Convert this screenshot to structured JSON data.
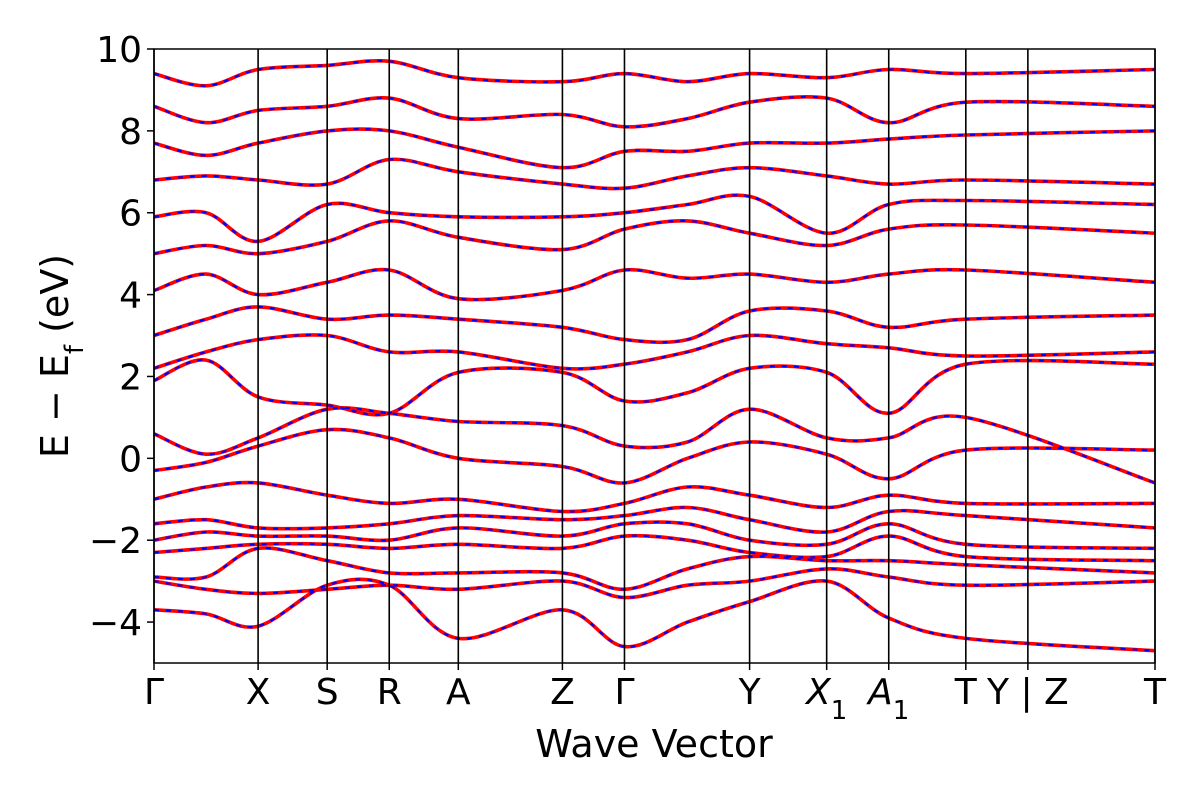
{
  "chart_data": {
    "type": "line",
    "title": "",
    "xlabel": "Wave Vector",
    "ylabel": "E − E",
    "ylabel_sub": "f",
    "ylabel_unit": " (eV)",
    "ylim": [
      -5,
      10
    ],
    "yticks": [
      {
        "value": 10,
        "label": "10"
      },
      {
        "value": 8,
        "label": "8"
      },
      {
        "value": 6,
        "label": "6"
      },
      {
        "value": 4,
        "label": "4"
      },
      {
        "value": 2,
        "label": "2"
      },
      {
        "value": 0,
        "label": "0"
      },
      {
        "value": -2,
        "label": "−2"
      },
      {
        "value": -4,
        "label": "−4"
      }
    ],
    "xlim": [
      0,
      1
    ],
    "kpoints": [
      {
        "pos": 0.0,
        "label": "Γ"
      },
      {
        "pos": 0.104,
        "label": "X"
      },
      {
        "pos": 0.173,
        "label": "S"
      },
      {
        "pos": 0.235,
        "label": "R"
      },
      {
        "pos": 0.304,
        "label": "A"
      },
      {
        "pos": 0.408,
        "label": "Z"
      },
      {
        "pos": 0.47,
        "label": "Γ"
      },
      {
        "pos": 0.595,
        "label": "Y"
      },
      {
        "pos": 0.672,
        "label": "X",
        "sub": "1"
      },
      {
        "pos": 0.734,
        "label": "A",
        "sub": "1"
      },
      {
        "pos": 0.811,
        "label": "T"
      },
      {
        "pos": 0.873,
        "label": "Y | Z"
      },
      {
        "pos": 1.0,
        "label": "T"
      }
    ],
    "series": [
      {
        "color": "#0000ff",
        "style": "dashed",
        "values": [
          [
            -3.7,
            -3.8,
            -4.1,
            -3.1,
            -3.1,
            -4.4,
            -3.7,
            -4.6,
            -4.0,
            -3.5,
            -3.0,
            -3.9,
            -4.4,
            -4.7
          ],
          [
            -3.0,
            -3.2,
            -3.3,
            -3.2,
            -3.1,
            -3.2,
            -3.0,
            -3.4,
            -3.1,
            -3.0,
            -2.7,
            -2.9,
            -3.1,
            -3.0
          ],
          [
            -2.9,
            -2.9,
            -2.2,
            -2.5,
            -2.8,
            -2.8,
            -2.8,
            -3.2,
            -2.7,
            -2.4,
            -2.5,
            -2.5,
            -2.6,
            -2.8
          ],
          [
            -2.3,
            -2.2,
            -2.1,
            -2.1,
            -2.2,
            -2.1,
            -2.2,
            -1.9,
            -2.0,
            -2.3,
            -2.4,
            -1.9,
            -2.4,
            -2.5
          ],
          [
            -2.0,
            -1.8,
            -1.9,
            -1.9,
            -2.0,
            -1.7,
            -1.9,
            -1.6,
            -1.6,
            -2.0,
            -2.1,
            -1.6,
            -2.1,
            -2.2
          ],
          [
            -1.6,
            -1.5,
            -1.7,
            -1.7,
            -1.6,
            -1.4,
            -1.5,
            -1.4,
            -1.2,
            -1.5,
            -1.8,
            -1.3,
            -1.4,
            -1.7
          ],
          [
            -1.0,
            -0.7,
            -0.6,
            -0.9,
            -1.1,
            -1.0,
            -1.3,
            -1.1,
            -0.7,
            -0.9,
            -1.2,
            -0.9,
            -1.1,
            -1.1
          ],
          [
            -0.3,
            -0.1,
            0.3,
            0.7,
            0.5,
            0.0,
            -0.2,
            -0.6,
            0.0,
            0.4,
            0.1,
            -0.5,
            0.2,
            0.2
          ],
          [
            0.6,
            0.1,
            0.5,
            1.2,
            1.1,
            0.9,
            0.8,
            0.3,
            0.4,
            1.2,
            0.5,
            0.5,
            1.0,
            -0.6
          ],
          [
            1.9,
            2.4,
            1.5,
            1.3,
            1.1,
            2.1,
            2.1,
            1.4,
            1.6,
            2.2,
            2.1,
            1.1,
            2.3,
            2.3
          ],
          [
            2.2,
            2.6,
            2.9,
            3.0,
            2.6,
            2.6,
            2.2,
            2.3,
            2.6,
            3.0,
            2.8,
            2.7,
            2.5,
            2.6
          ],
          [
            3.0,
            3.4,
            3.7,
            3.4,
            3.5,
            3.4,
            3.2,
            2.9,
            2.9,
            3.6,
            3.6,
            3.2,
            3.4,
            3.5
          ],
          [
            4.1,
            4.5,
            4.0,
            4.3,
            4.6,
            3.9,
            4.1,
            4.6,
            4.4,
            4.5,
            4.3,
            4.5,
            4.6,
            4.3
          ],
          [
            5.0,
            5.2,
            5.0,
            5.3,
            5.8,
            5.4,
            5.1,
            5.6,
            5.8,
            5.5,
            5.2,
            5.6,
            5.7,
            5.5
          ],
          [
            5.9,
            6.0,
            5.3,
            6.2,
            6.0,
            5.9,
            5.9,
            6.0,
            6.2,
            6.4,
            5.5,
            6.2,
            6.3,
            6.2
          ],
          [
            6.8,
            6.9,
            6.8,
            6.7,
            7.3,
            7.0,
            6.7,
            6.6,
            6.9,
            7.1,
            6.9,
            6.7,
            6.8,
            6.7
          ],
          [
            7.7,
            7.4,
            7.7,
            8.0,
            8.0,
            7.6,
            7.1,
            7.5,
            7.5,
            7.7,
            7.7,
            7.8,
            7.9,
            8.0
          ],
          [
            8.6,
            8.2,
            8.5,
            8.6,
            8.8,
            8.3,
            8.4,
            8.1,
            8.3,
            8.7,
            8.8,
            8.2,
            8.7,
            8.6
          ],
          [
            9.4,
            9.1,
            9.5,
            9.6,
            9.7,
            9.3,
            9.2,
            9.4,
            9.2,
            9.4,
            9.3,
            9.5,
            9.4,
            9.5
          ]
        ]
      },
      {
        "color": "#ff0000",
        "style": "solid",
        "values": [
          [
            -3.7,
            -3.8,
            -4.1,
            -3.1,
            -3.1,
            -4.4,
            -3.7,
            -4.6,
            -4.0,
            -3.5,
            -3.0,
            -3.9,
            -4.4,
            -4.7
          ],
          [
            -3.0,
            -3.2,
            -3.3,
            -3.2,
            -3.1,
            -3.2,
            -3.0,
            -3.4,
            -3.1,
            -3.0,
            -2.7,
            -2.9,
            -3.1,
            -3.0
          ],
          [
            -2.9,
            -2.9,
            -2.2,
            -2.5,
            -2.8,
            -2.8,
            -2.8,
            -3.2,
            -2.7,
            -2.4,
            -2.5,
            -2.5,
            -2.6,
            -2.8
          ],
          [
            -2.3,
            -2.2,
            -2.1,
            -2.1,
            -2.2,
            -2.1,
            -2.2,
            -1.9,
            -2.0,
            -2.3,
            -2.4,
            -1.9,
            -2.4,
            -2.5
          ],
          [
            -2.0,
            -1.8,
            -1.9,
            -1.9,
            -2.0,
            -1.7,
            -1.9,
            -1.6,
            -1.6,
            -2.0,
            -2.1,
            -1.6,
            -2.1,
            -2.2
          ],
          [
            -1.6,
            -1.5,
            -1.7,
            -1.7,
            -1.6,
            -1.4,
            -1.5,
            -1.4,
            -1.2,
            -1.5,
            -1.8,
            -1.3,
            -1.4,
            -1.7
          ],
          [
            -1.0,
            -0.7,
            -0.6,
            -0.9,
            -1.1,
            -1.0,
            -1.3,
            -1.1,
            -0.7,
            -0.9,
            -1.2,
            -0.9,
            -1.1,
            -1.1
          ],
          [
            -0.3,
            -0.1,
            0.3,
            0.7,
            0.5,
            0.0,
            -0.2,
            -0.6,
            0.0,
            0.4,
            0.1,
            -0.5,
            0.2,
            0.2
          ],
          [
            0.6,
            0.1,
            0.5,
            1.2,
            1.1,
            0.9,
            0.8,
            0.3,
            0.4,
            1.2,
            0.5,
            0.5,
            1.0,
            -0.6
          ],
          [
            1.9,
            2.4,
            1.5,
            1.3,
            1.1,
            2.1,
            2.1,
            1.4,
            1.6,
            2.2,
            2.1,
            1.1,
            2.3,
            2.3
          ],
          [
            2.2,
            2.6,
            2.9,
            3.0,
            2.6,
            2.6,
            2.2,
            2.3,
            2.6,
            3.0,
            2.8,
            2.7,
            2.5,
            2.6
          ],
          [
            3.0,
            3.4,
            3.7,
            3.4,
            3.5,
            3.4,
            3.2,
            2.9,
            2.9,
            3.6,
            3.6,
            3.2,
            3.4,
            3.5
          ],
          [
            4.1,
            4.5,
            4.0,
            4.3,
            4.6,
            3.9,
            4.1,
            4.6,
            4.4,
            4.5,
            4.3,
            4.5,
            4.6,
            4.3
          ],
          [
            5.0,
            5.2,
            5.0,
            5.3,
            5.8,
            5.4,
            5.1,
            5.6,
            5.8,
            5.5,
            5.2,
            5.6,
            5.7,
            5.5
          ],
          [
            5.9,
            6.0,
            5.3,
            6.2,
            6.0,
            5.9,
            5.9,
            6.0,
            6.2,
            6.4,
            5.5,
            6.2,
            6.3,
            6.2
          ],
          [
            6.8,
            6.9,
            6.8,
            6.7,
            7.3,
            7.0,
            6.7,
            6.6,
            6.9,
            7.1,
            6.9,
            6.7,
            6.8,
            6.7
          ],
          [
            7.7,
            7.4,
            7.7,
            8.0,
            8.0,
            7.6,
            7.1,
            7.5,
            7.5,
            7.7,
            7.7,
            7.8,
            7.9,
            8.0
          ],
          [
            8.6,
            8.2,
            8.5,
            8.6,
            8.8,
            8.3,
            8.4,
            8.1,
            8.3,
            8.7,
            8.8,
            8.2,
            8.7,
            8.6
          ],
          [
            9.4,
            9.1,
            9.5,
            9.6,
            9.7,
            9.3,
            9.2,
            9.4,
            9.2,
            9.4,
            9.3,
            9.5,
            9.4,
            9.5
          ]
        ]
      }
    ],
    "band_x": [
      0.0,
      0.052,
      0.104,
      0.173,
      0.235,
      0.304,
      0.408,
      0.47,
      0.533,
      0.595,
      0.672,
      0.734,
      0.811,
      1.0
    ],
    "grid": false,
    "legend": "none"
  }
}
